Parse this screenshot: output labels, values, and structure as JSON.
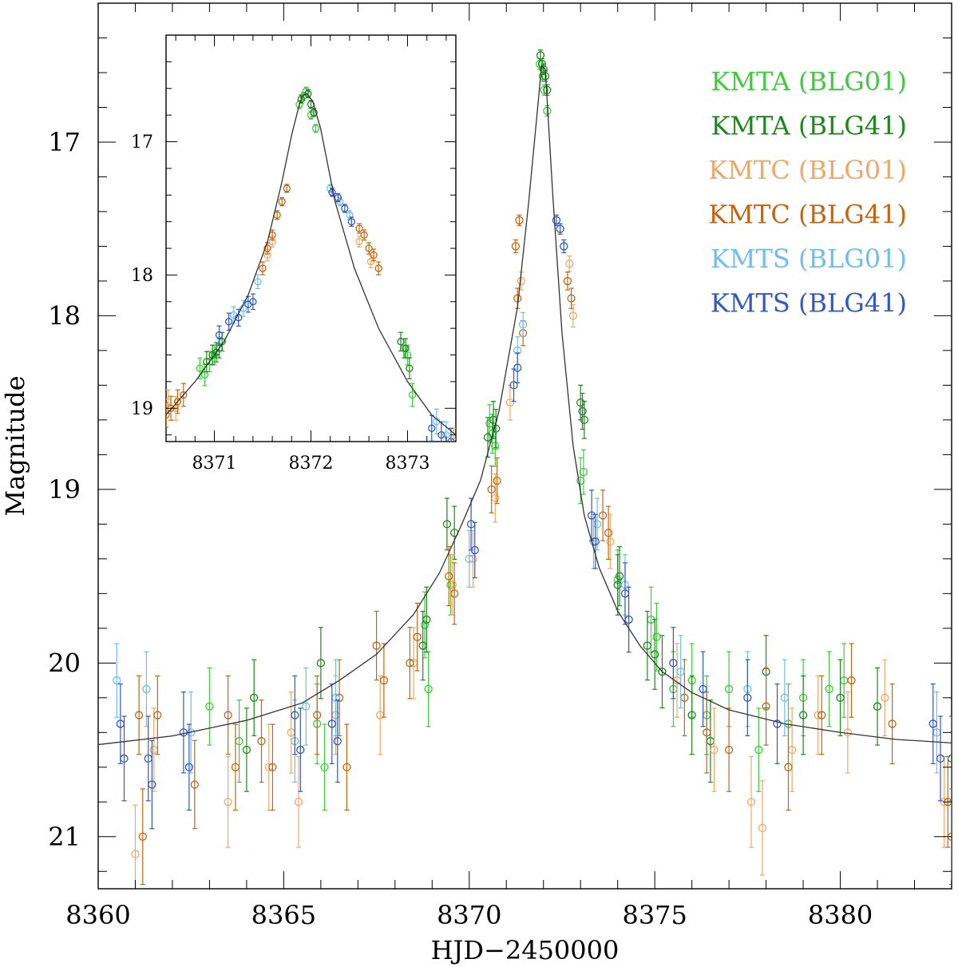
{
  "chart_data": [
    {
      "id": "main",
      "type": "scatter",
      "title": "",
      "xlabel": "HJD−2450000",
      "ylabel": "Magnitude",
      "xlim": [
        8360,
        8383
      ],
      "ylim": [
        21.3,
        16.2
      ],
      "y_inverted": true,
      "xticks_major": [
        8360,
        8365,
        8370,
        8375,
        8380
      ],
      "xtick_labels": [
        "8360",
        "8365",
        "8370",
        "8375",
        "8380"
      ],
      "yticks_major": [
        17,
        18,
        19,
        20,
        21
      ],
      "ytick_labels": [
        "17",
        "18",
        "19",
        "20",
        "21"
      ],
      "model": {
        "name": "model light curve",
        "x": [
          8360.0,
          8362.0,
          8364.0,
          8365.5,
          8366.5,
          8367.5,
          8368.5,
          8369.2,
          8369.8,
          8370.3,
          8370.8,
          8371.3,
          8371.6,
          8371.8,
          8371.95,
          8372.05,
          8372.25,
          8372.5,
          8372.8,
          8373.1,
          8373.5,
          8374.0,
          8374.6,
          8375.2,
          8376.0,
          8377.0,
          8378.5,
          8380.0,
          8381.5,
          8383.0
        ],
        "y": [
          20.47,
          20.42,
          20.33,
          20.23,
          20.1,
          19.95,
          19.72,
          19.48,
          19.2,
          18.95,
          18.55,
          17.95,
          17.35,
          16.9,
          16.56,
          16.58,
          17.3,
          18.1,
          18.75,
          19.15,
          19.45,
          19.7,
          19.9,
          20.05,
          20.17,
          20.27,
          20.35,
          20.4,
          20.44,
          20.46
        ]
      },
      "series": [
        {
          "name": "KMTA (BLG01)",
          "color": "#3ecb3e",
          "x": [
            8368.8,
            8369.5,
            8370.55,
            8370.62,
            8370.7,
            8371.9,
            8371.98,
            8372.02,
            8372.1,
            8373.0,
            8373.08,
            8374.0,
            8374.9,
            8375.05,
            8375.5,
            8376.0,
            8376.4,
            8377.0,
            8377.8,
            8378.6,
            8379.0,
            8379.7,
            8380.1,
            8363.0,
            8363.8,
            8365.9,
            8366.1,
            8368.9
          ],
          "y": [
            19.78,
            19.55,
            18.62,
            18.68,
            18.75,
            16.55,
            16.62,
            16.7,
            16.82,
            18.95,
            18.9,
            19.52,
            19.75,
            19.85,
            20.15,
            20.1,
            20.3,
            20.15,
            20.5,
            20.35,
            20.2,
            20.15,
            20.1,
            20.25,
            20.45,
            20.35,
            20.6,
            20.15
          ]
        },
        {
          "name": "KMTA (BLG41)",
          "color": "#1a8a1a",
          "x": [
            8364.0,
            8364.2,
            8366.0,
            8368.75,
            8368.85,
            8369.4,
            8369.6,
            8370.5,
            8370.65,
            8370.72,
            8371.92,
            8371.96,
            8372.0,
            8372.05,
            8372.1,
            8373.0,
            8373.05,
            8373.1,
            8374.0,
            8374.05,
            8374.8,
            8375.0,
            8375.2,
            8376.0,
            8376.5,
            8378.0,
            8379.0,
            8380.0,
            8381.0,
            8383.0
          ],
          "y": [
            20.5,
            20.2,
            20.0,
            19.9,
            19.75,
            19.2,
            19.25,
            18.7,
            18.6,
            18.65,
            16.5,
            16.55,
            16.58,
            16.62,
            16.7,
            18.5,
            18.55,
            18.6,
            19.55,
            19.5,
            19.9,
            19.95,
            20.05,
            20.3,
            20.45,
            20.05,
            20.3,
            20.2,
            20.25,
            20.55
          ]
        },
        {
          "name": "KMTC (BLG01)",
          "color": "#f0a868",
          "x": [
            8361.0,
            8361.5,
            8363.5,
            8364.6,
            8365.2,
            8365.4,
            8366.4,
            8367.6,
            8368.5,
            8369.55,
            8370.1,
            8370.7,
            8371.1,
            8371.4,
            8372.7,
            8372.8,
            8373.8,
            8375.6,
            8376.6,
            8377.6,
            8377.9,
            8378.7,
            8379.4,
            8380.2,
            8381.2,
            8382.8
          ],
          "y": [
            21.1,
            20.5,
            20.8,
            20.6,
            20.4,
            20.8,
            20.3,
            20.3,
            20.0,
            19.55,
            19.4,
            19.05,
            18.5,
            17.8,
            17.7,
            18.0,
            19.3,
            20.1,
            20.5,
            20.8,
            20.95,
            20.5,
            20.3,
            20.4,
            20.2,
            20.8
          ]
        },
        {
          "name": "KMTC (BLG41)",
          "color": "#c86410",
          "x": [
            8361.1,
            8361.2,
            8361.6,
            8362.6,
            8363.5,
            8363.7,
            8364.4,
            8364.7,
            8365.9,
            8366.5,
            8366.7,
            8367.5,
            8367.7,
            8368.4,
            8368.6,
            8369.45,
            8369.6,
            8370.6,
            8370.75,
            8371.25,
            8371.3,
            8371.35,
            8371.45,
            8372.65,
            8372.75,
            8373.6,
            8373.75,
            8375.8,
            8376.4,
            8377.0,
            8378.0,
            8378.6,
            8379.5,
            8380.3,
            8381.4,
            8382.9,
            8383.0
          ],
          "y": [
            20.3,
            21.0,
            20.3,
            20.7,
            20.3,
            20.6,
            20.45,
            20.6,
            20.3,
            20.2,
            20.6,
            19.9,
            20.1,
            20.0,
            19.85,
            19.5,
            19.6,
            19.0,
            18.95,
            17.6,
            17.9,
            17.45,
            18.1,
            17.8,
            17.9,
            19.15,
            19.25,
            20.2,
            20.4,
            20.5,
            20.25,
            20.6,
            20.3,
            20.1,
            20.35,
            20.8,
            21.0
          ]
        },
        {
          "name": "KMTS (BLG01)",
          "color": "#6ebef0",
          "x": [
            8360.5,
            8361.3,
            8362.5,
            8365.3,
            8365.6,
            8366.4,
            8370.0,
            8371.3,
            8371.45,
            8373.35,
            8373.45,
            8374.2,
            8375.7,
            8377.5,
            8378.5,
            8382.6
          ],
          "y": [
            20.1,
            20.15,
            20.4,
            20.45,
            20.25,
            20.2,
            19.4,
            18.2,
            18.05,
            19.3,
            19.2,
            19.55,
            20.05,
            20.15,
            20.2,
            20.4
          ]
        },
        {
          "name": "KMTS (BLG41)",
          "color": "#3058c8",
          "x": [
            8360.6,
            8360.7,
            8361.35,
            8361.45,
            8362.3,
            8362.45,
            8365.3,
            8365.45,
            8366.3,
            8366.45,
            8370.05,
            8370.15,
            8371.2,
            8371.3,
            8372.35,
            8372.45,
            8372.55,
            8373.3,
            8373.4,
            8374.2,
            8374.3,
            8375.5,
            8376.3,
            8377.5,
            8378.3,
            8382.5,
            8382.7
          ],
          "y": [
            20.35,
            20.55,
            20.55,
            20.7,
            20.4,
            20.6,
            20.3,
            20.5,
            20.35,
            20.45,
            19.2,
            19.35,
            18.4,
            18.3,
            17.45,
            17.5,
            17.6,
            19.15,
            19.3,
            19.6,
            19.75,
            20.0,
            20.15,
            20.2,
            20.35,
            20.35,
            20.55
          ]
        }
      ]
    },
    {
      "id": "inset",
      "type": "scatter",
      "title": "",
      "xlabel": "",
      "ylabel": "",
      "xlim": [
        8370.5,
        8373.5
      ],
      "ylim": [
        19.25,
        16.2
      ],
      "y_inverted": true,
      "xticks_major": [
        8371,
        8372,
        8373
      ],
      "xtick_labels": [
        "8371",
        "8372",
        "8373"
      ],
      "yticks_major": [
        17,
        18,
        19
      ],
      "ytick_labels": [
        "17",
        "18",
        "19"
      ],
      "model": {
        "name": "model light curve",
        "x": [
          8370.5,
          8370.8,
          8371.1,
          8371.35,
          8371.55,
          8371.7,
          8371.8,
          8371.88,
          8371.92,
          8371.96,
          8372.02,
          8372.1,
          8372.25,
          8372.45,
          8372.7,
          8373.0,
          8373.25,
          8373.5
        ],
        "y": [
          19.05,
          18.8,
          18.5,
          18.15,
          17.75,
          17.3,
          16.95,
          16.72,
          16.65,
          16.64,
          16.7,
          16.9,
          17.45,
          17.95,
          18.4,
          18.8,
          19.05,
          19.2
        ]
      },
      "series": [
        {
          "name": "KMTA (BLG01)",
          "color": "#3ecb3e",
          "x": [
            8370.85,
            8370.9,
            8370.95,
            8371.0,
            8371.88,
            8371.92,
            8371.95,
            8372.0,
            8372.05,
            8372.96,
            8373.0,
            8373.05
          ],
          "y": [
            18.7,
            18.75,
            18.65,
            18.6,
            16.72,
            16.66,
            16.62,
            16.8,
            16.9,
            18.55,
            18.6,
            18.9
          ]
        },
        {
          "name": "KMTA (BLG41)",
          "color": "#1a8a1a",
          "x": [
            8370.92,
            8370.98,
            8371.02,
            8371.05,
            8371.08,
            8371.9,
            8371.97,
            8372.0,
            8372.03,
            8372.93,
            8372.98,
            8373.02
          ],
          "y": [
            18.65,
            18.6,
            18.58,
            18.55,
            18.5,
            16.68,
            16.64,
            16.72,
            16.78,
            18.5,
            18.55,
            18.7
          ]
        },
        {
          "name": "KMTC (BLG01)",
          "color": "#f0a868",
          "x": [
            8370.52,
            8370.6,
            8371.55,
            8371.6,
            8372.5,
            8372.62,
            8373.48
          ],
          "y": [
            18.95,
            19.0,
            17.85,
            17.75,
            17.75,
            17.9,
            19.25
          ]
        },
        {
          "name": "KMTC (BLG41)",
          "color": "#c86410",
          "x": [
            8370.5,
            8370.55,
            8370.62,
            8370.68,
            8371.5,
            8371.55,
            8371.6,
            8371.65,
            8371.7,
            8371.75,
            8372.5,
            8372.55,
            8372.6,
            8372.65,
            8372.7
          ],
          "y": [
            19.05,
            19.0,
            18.95,
            18.9,
            17.95,
            17.8,
            17.7,
            17.55,
            17.45,
            17.35,
            17.65,
            17.7,
            17.8,
            17.85,
            17.95
          ]
        },
        {
          "name": "KMTS (BLG01)",
          "color": "#6ebef0",
          "x": [
            8371.2,
            8371.3,
            8371.45,
            8372.2,
            8372.3,
            8372.4,
            8373.3,
            8373.4
          ],
          "y": [
            18.3,
            18.25,
            18.05,
            17.35,
            17.45,
            17.55,
            19.1,
            19.2
          ]
        },
        {
          "name": "KMTS (BLG41)",
          "color": "#3058c8",
          "x": [
            8371.05,
            8371.15,
            8371.25,
            8371.35,
            8371.4,
            8372.22,
            8372.28,
            8372.35,
            8372.42,
            8373.25,
            8373.35,
            8373.45
          ],
          "y": [
            18.45,
            18.35,
            18.32,
            18.22,
            18.2,
            17.38,
            17.42,
            17.5,
            17.6,
            19.15,
            19.2,
            19.25
          ]
        }
      ]
    }
  ],
  "legend": [
    {
      "text": "KMTA (BLG01)",
      "color": "#3ecb3e"
    },
    {
      "text": "KMTA (BLG41)",
      "color": "#1a8a1a"
    },
    {
      "text": "KMTC (BLG01)",
      "color": "#f0a868"
    },
    {
      "text": "KMTC (BLG41)",
      "color": "#c86410"
    },
    {
      "text": "KMTS (BLG01)",
      "color": "#6ebef0"
    },
    {
      "text": "KMTS (BLG41)",
      "color": "#3058c8"
    }
  ]
}
